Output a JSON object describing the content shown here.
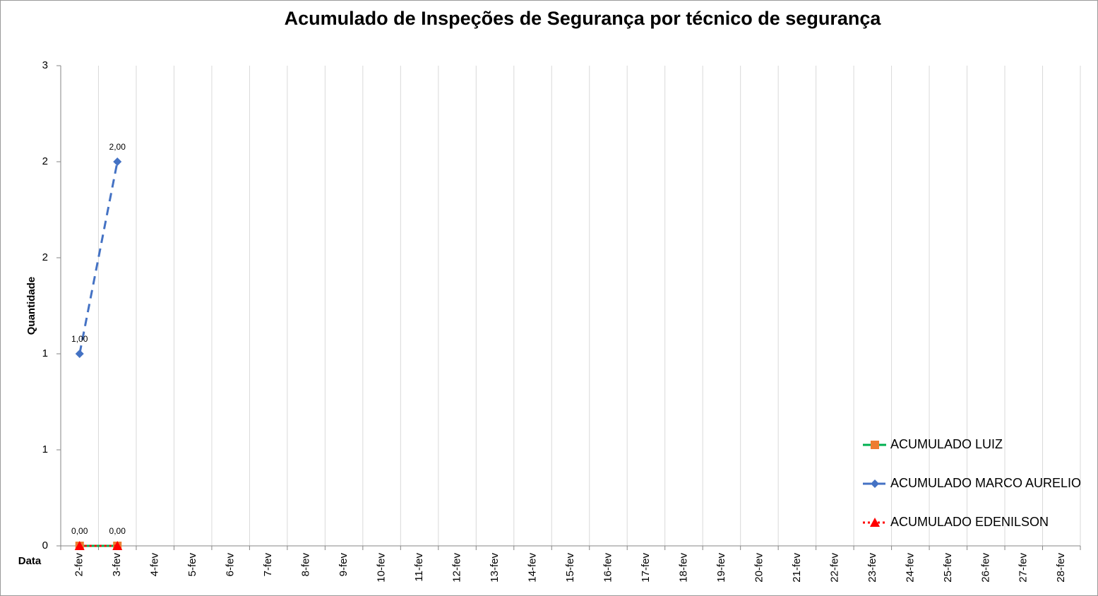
{
  "chart_data": {
    "type": "line",
    "title": "Acumulado de Inspeções de Segurança por técnico de segurança",
    "x_label": "Data",
    "y_label": "Quantidade",
    "categories": [
      "2-fev",
      "3-fev",
      "4-fev",
      "5-fev",
      "6-fev",
      "7-fev",
      "8-fev",
      "9-fev",
      "10-fev",
      "11-fev",
      "12-fev",
      "13-fev",
      "14-fev",
      "15-fev",
      "16-fev",
      "17-fev",
      "18-fev",
      "19-fev",
      "20-fev",
      "21-fev",
      "22-fev",
      "23-fev",
      "24-fev",
      "25-fev",
      "26-fev",
      "27-fev",
      "28-fev"
    ],
    "series": [
      {
        "name": "ACUMULADO LUIZ",
        "color": "#00b050",
        "marker_color": "#ed7d31",
        "marker": "square",
        "dash": "solid",
        "values": [
          0,
          0,
          null,
          null,
          null,
          null,
          null,
          null,
          null,
          null,
          null,
          null,
          null,
          null,
          null,
          null,
          null,
          null,
          null,
          null,
          null,
          null,
          null,
          null,
          null,
          null,
          null
        ]
      },
      {
        "name": "ACUMULADO MARCO AURELIO",
        "color": "#4472c4",
        "marker_color": "#4472c4",
        "marker": "diamond",
        "dash": "dashed",
        "values": [
          1,
          2,
          null,
          null,
          null,
          null,
          null,
          null,
          null,
          null,
          null,
          null,
          null,
          null,
          null,
          null,
          null,
          null,
          null,
          null,
          null,
          null,
          null,
          null,
          null,
          null,
          null
        ],
        "value_labels": [
          "1,00",
          "2,00",
          null,
          null,
          null,
          null,
          null,
          null,
          null,
          null,
          null,
          null,
          null,
          null,
          null,
          null,
          null,
          null,
          null,
          null,
          null,
          null,
          null,
          null,
          null,
          null,
          null
        ]
      },
      {
        "name": "ACUMULADO EDENILSON",
        "color": "#ff0000",
        "marker_color": "#ff0000",
        "marker": "triangle",
        "dash": "dotted",
        "values": [
          0,
          0,
          null,
          null,
          null,
          null,
          null,
          null,
          null,
          null,
          null,
          null,
          null,
          null,
          null,
          null,
          null,
          null,
          null,
          null,
          null,
          null,
          null,
          null,
          null,
          null,
          null
        ],
        "value_labels": [
          "0,00",
          "0,00",
          null,
          null,
          null,
          null,
          null,
          null,
          null,
          null,
          null,
          null,
          null,
          null,
          null,
          null,
          null,
          null,
          null,
          null,
          null,
          null,
          null,
          null,
          null,
          null,
          null
        ]
      }
    ],
    "ylim": [
      0,
      2.5
    ],
    "yticks": [
      0,
      {
        "value": 0.5,
        "label": "1"
      },
      1,
      {
        "value": 1.5,
        "label": "2"
      },
      2,
      {
        "value": 2.5,
        "label": "3"
      }
    ],
    "grid": true,
    "legend": "right"
  }
}
